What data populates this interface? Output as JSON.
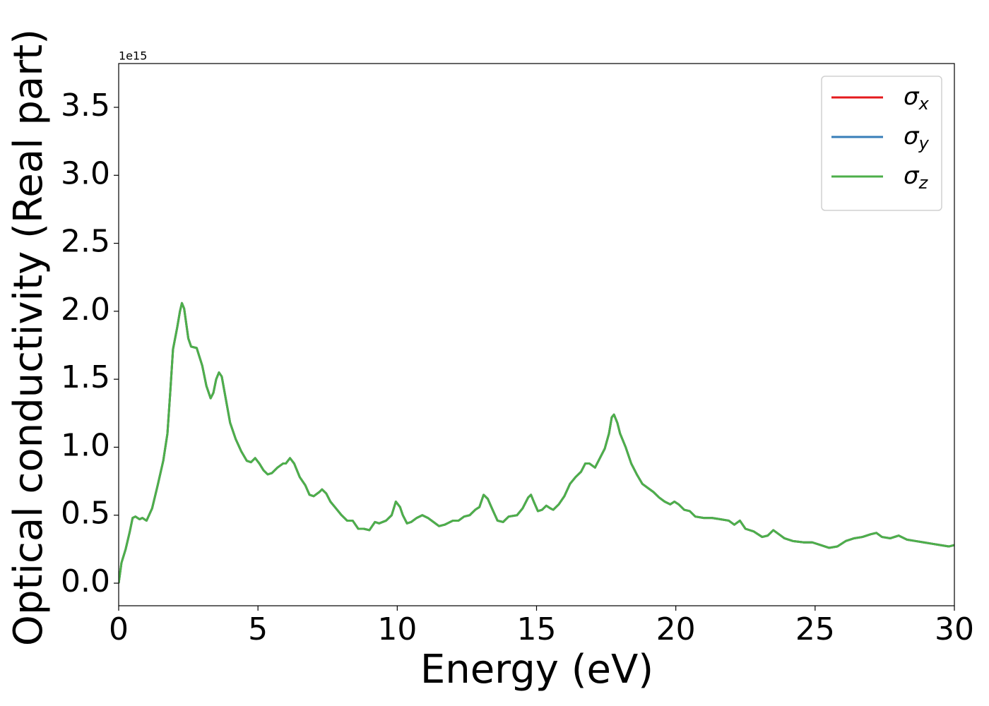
{
  "chart_data": {
    "type": "line",
    "xlabel": "Energy (eV)",
    "ylabel": "Optical conductivity (Real part)",
    "y_offset_label": "1e15",
    "x": [
      0,
      0.1,
      0.25,
      0.4,
      0.5,
      0.6,
      0.75,
      0.85,
      1.0,
      1.2,
      1.4,
      1.6,
      1.75,
      1.85,
      1.95,
      2.1,
      2.2,
      2.27,
      2.35,
      2.5,
      2.6,
      2.8,
      3.0,
      3.15,
      3.3,
      3.4,
      3.5,
      3.6,
      3.7,
      3.85,
      4.0,
      4.2,
      4.4,
      4.6,
      4.75,
      4.9,
      5.05,
      5.2,
      5.35,
      5.5,
      5.7,
      5.9,
      6.0,
      6.15,
      6.3,
      6.5,
      6.7,
      6.85,
      7.0,
      7.2,
      7.3,
      7.45,
      7.6,
      7.8,
      8.0,
      8.2,
      8.4,
      8.6,
      8.8,
      9.0,
      9.2,
      9.35,
      9.6,
      9.8,
      9.95,
      10.1,
      10.2,
      10.35,
      10.5,
      10.7,
      10.9,
      11.1,
      11.3,
      11.5,
      11.7,
      12.0,
      12.2,
      12.4,
      12.6,
      12.8,
      12.95,
      13.1,
      13.25,
      13.4,
      13.6,
      13.8,
      14.0,
      14.3,
      14.5,
      14.7,
      14.8,
      14.9,
      15.05,
      15.2,
      15.35,
      15.5,
      15.6,
      15.8,
      16.0,
      16.2,
      16.4,
      16.6,
      16.75,
      16.9,
      17.1,
      17.3,
      17.45,
      17.6,
      17.7,
      17.78,
      17.9,
      18.0,
      18.2,
      18.4,
      18.6,
      18.8,
      19.0,
      19.2,
      19.4,
      19.6,
      19.8,
      19.95,
      20.1,
      20.3,
      20.5,
      20.7,
      21.0,
      21.3,
      21.6,
      21.9,
      22.1,
      22.3,
      22.5,
      22.8,
      23.1,
      23.3,
      23.5,
      23.7,
      23.9,
      24.2,
      24.6,
      24.9,
      25.2,
      25.5,
      25.8,
      26.1,
      26.4,
      26.7,
      27.0,
      27.2,
      27.4,
      27.7,
      28.0,
      28.3,
      28.6,
      28.9,
      29.2,
      29.5,
      29.8,
      30.0
    ],
    "series": [
      {
        "name": "σx",
        "color": "#e41a1c",
        "values": [
          0,
          0.15,
          0.25,
          0.38,
          0.48,
          0.49,
          0.47,
          0.48,
          0.46,
          0.55,
          0.72,
          0.9,
          1.1,
          1.4,
          1.72,
          1.88,
          2.0,
          2.06,
          2.02,
          1.8,
          1.74,
          1.73,
          1.6,
          1.45,
          1.36,
          1.4,
          1.5,
          1.55,
          1.52,
          1.35,
          1.18,
          1.06,
          0.97,
          0.9,
          0.89,
          0.92,
          0.88,
          0.83,
          0.8,
          0.81,
          0.85,
          0.88,
          0.88,
          0.92,
          0.88,
          0.78,
          0.72,
          0.65,
          0.64,
          0.67,
          0.69,
          0.66,
          0.6,
          0.55,
          0.5,
          0.46,
          0.46,
          0.4,
          0.4,
          0.39,
          0.45,
          0.44,
          0.46,
          0.5,
          0.6,
          0.56,
          0.5,
          0.44,
          0.45,
          0.48,
          0.5,
          0.48,
          0.45,
          0.42,
          0.43,
          0.46,
          0.46,
          0.49,
          0.5,
          0.54,
          0.56,
          0.65,
          0.62,
          0.55,
          0.46,
          0.45,
          0.49,
          0.5,
          0.55,
          0.63,
          0.65,
          0.6,
          0.53,
          0.54,
          0.57,
          0.55,
          0.54,
          0.58,
          0.64,
          0.73,
          0.78,
          0.82,
          0.88,
          0.88,
          0.85,
          0.93,
          0.99,
          1.1,
          1.22,
          1.24,
          1.18,
          1.1,
          1.0,
          0.88,
          0.8,
          0.73,
          0.7,
          0.67,
          0.63,
          0.6,
          0.58,
          0.6,
          0.58,
          0.54,
          0.53,
          0.49,
          0.48,
          0.48,
          0.47,
          0.46,
          0.43,
          0.46,
          0.4,
          0.38,
          0.34,
          0.35,
          0.39,
          0.36,
          0.33,
          0.31,
          0.3,
          0.3,
          0.28,
          0.26,
          0.27,
          0.31,
          0.33,
          0.34,
          0.36,
          0.37,
          0.34,
          0.33,
          0.35,
          0.32,
          0.31,
          0.3,
          0.29,
          0.28,
          0.27,
          0.28
        ]
      },
      {
        "name": "σy",
        "color": "#377eb8",
        "values": [
          0,
          0.15,
          0.25,
          0.38,
          0.48,
          0.49,
          0.47,
          0.48,
          0.46,
          0.55,
          0.72,
          0.9,
          1.1,
          1.4,
          1.72,
          1.88,
          2.0,
          2.06,
          2.02,
          1.8,
          1.74,
          1.73,
          1.6,
          1.45,
          1.36,
          1.4,
          1.5,
          1.55,
          1.52,
          1.35,
          1.18,
          1.06,
          0.97,
          0.9,
          0.89,
          0.92,
          0.88,
          0.83,
          0.8,
          0.81,
          0.85,
          0.88,
          0.88,
          0.92,
          0.88,
          0.78,
          0.72,
          0.65,
          0.64,
          0.67,
          0.69,
          0.66,
          0.6,
          0.55,
          0.5,
          0.46,
          0.46,
          0.4,
          0.4,
          0.39,
          0.45,
          0.44,
          0.46,
          0.5,
          0.6,
          0.56,
          0.5,
          0.44,
          0.45,
          0.48,
          0.5,
          0.48,
          0.45,
          0.42,
          0.43,
          0.46,
          0.46,
          0.49,
          0.5,
          0.54,
          0.56,
          0.65,
          0.62,
          0.55,
          0.46,
          0.45,
          0.49,
          0.5,
          0.55,
          0.63,
          0.65,
          0.6,
          0.53,
          0.54,
          0.57,
          0.55,
          0.54,
          0.58,
          0.64,
          0.73,
          0.78,
          0.82,
          0.88,
          0.88,
          0.85,
          0.93,
          0.99,
          1.1,
          1.22,
          1.24,
          1.18,
          1.1,
          1.0,
          0.88,
          0.8,
          0.73,
          0.7,
          0.67,
          0.63,
          0.6,
          0.58,
          0.6,
          0.58,
          0.54,
          0.53,
          0.49,
          0.48,
          0.48,
          0.47,
          0.46,
          0.43,
          0.46,
          0.4,
          0.38,
          0.34,
          0.35,
          0.39,
          0.36,
          0.33,
          0.31,
          0.3,
          0.3,
          0.28,
          0.26,
          0.27,
          0.31,
          0.33,
          0.34,
          0.36,
          0.37,
          0.34,
          0.33,
          0.35,
          0.32,
          0.31,
          0.3,
          0.29,
          0.28,
          0.27,
          0.28
        ]
      },
      {
        "name": "σz",
        "color": "#4daf4a",
        "values": [
          0,
          0.15,
          0.25,
          0.38,
          0.48,
          0.49,
          0.47,
          0.48,
          0.46,
          0.55,
          0.72,
          0.9,
          1.1,
          1.4,
          1.72,
          1.88,
          2.0,
          2.06,
          2.02,
          1.8,
          1.74,
          1.73,
          1.6,
          1.45,
          1.36,
          1.4,
          1.5,
          1.55,
          1.52,
          1.35,
          1.18,
          1.06,
          0.97,
          0.9,
          0.89,
          0.92,
          0.88,
          0.83,
          0.8,
          0.81,
          0.85,
          0.88,
          0.88,
          0.92,
          0.88,
          0.78,
          0.72,
          0.65,
          0.64,
          0.67,
          0.69,
          0.66,
          0.6,
          0.55,
          0.5,
          0.46,
          0.46,
          0.4,
          0.4,
          0.39,
          0.45,
          0.44,
          0.46,
          0.5,
          0.6,
          0.56,
          0.5,
          0.44,
          0.45,
          0.48,
          0.5,
          0.48,
          0.45,
          0.42,
          0.43,
          0.46,
          0.46,
          0.49,
          0.5,
          0.54,
          0.56,
          0.65,
          0.62,
          0.55,
          0.46,
          0.45,
          0.49,
          0.5,
          0.55,
          0.63,
          0.65,
          0.6,
          0.53,
          0.54,
          0.57,
          0.55,
          0.54,
          0.58,
          0.64,
          0.73,
          0.78,
          0.82,
          0.88,
          0.88,
          0.85,
          0.93,
          0.99,
          1.1,
          1.22,
          1.24,
          1.18,
          1.1,
          1.0,
          0.88,
          0.8,
          0.73,
          0.7,
          0.67,
          0.63,
          0.6,
          0.58,
          0.6,
          0.58,
          0.54,
          0.53,
          0.49,
          0.48,
          0.48,
          0.47,
          0.46,
          0.43,
          0.46,
          0.4,
          0.38,
          0.34,
          0.35,
          0.39,
          0.36,
          0.33,
          0.31,
          0.3,
          0.3,
          0.28,
          0.26,
          0.27,
          0.31,
          0.33,
          0.34,
          0.36,
          0.37,
          0.34,
          0.33,
          0.35,
          0.32,
          0.31,
          0.3,
          0.29,
          0.28,
          0.27,
          0.28
        ]
      }
    ],
    "xlim": [
      0,
      30
    ],
    "xticks": [
      0,
      5,
      10,
      15,
      20,
      25,
      30
    ],
    "ylim": [
      -0.166,
      3.822
    ],
    "yticks": [
      {
        "value": 0,
        "label": "0.0"
      },
      {
        "value": 0.5,
        "label": "0.5"
      },
      {
        "value": 1,
        "label": "1.0"
      },
      {
        "value": 1.5,
        "label": "1.5"
      },
      {
        "value": 2,
        "label": "2.0"
      },
      {
        "value": 2.5,
        "label": "2.5"
      },
      {
        "value": 3,
        "label": "3.0"
      },
      {
        "value": 3.5,
        "label": "3.5"
      }
    ],
    "legend": "upper right",
    "grid": false
  }
}
